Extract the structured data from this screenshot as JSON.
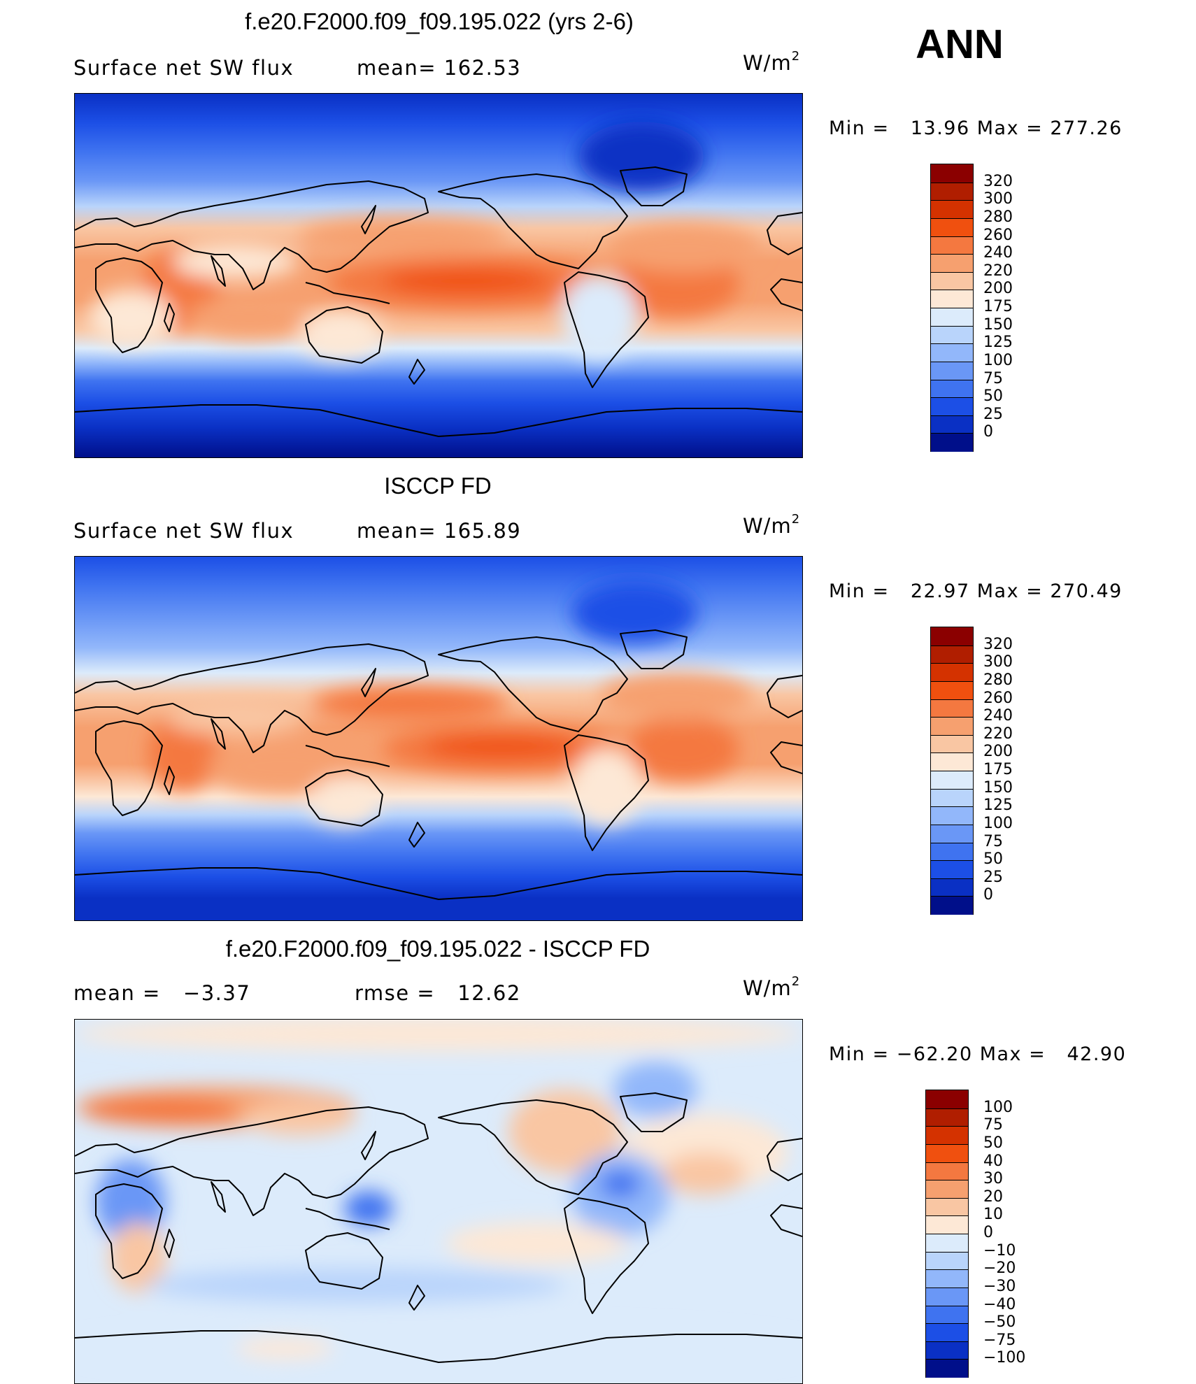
{
  "season": "ANN",
  "unit_main": "W/m",
  "unit_sup": "2",
  "panels": [
    {
      "title": "f.e20.F2000.f09_f09.195.022 (yrs 2-6)",
      "left_label": "Surface net SW flux",
      "center_label": "mean= 162.53",
      "minmax": "Min =   13.96 Max = 277.26"
    },
    {
      "title": "ISCCP FD",
      "left_label": "Surface net SW flux",
      "center_label": "mean= 165.89",
      "minmax": "Min =   22.97 Max = 270.49"
    },
    {
      "title": "f.e20.F2000.f09_f09.195.022 - ISCCP FD",
      "left_label": "mean =   −3.37",
      "center_label": "rmse =   12.62",
      "minmax": "Min = −62.20 Max =   42.90"
    }
  ],
  "colorbars": {
    "absolute": {
      "levels": [
        "320",
        "300",
        "280",
        "260",
        "240",
        "220",
        "200",
        "175",
        "150",
        "125",
        "100",
        "75",
        "50",
        "25",
        "0"
      ],
      "colors": [
        "#8b0000",
        "#b01e00",
        "#d43200",
        "#f0500f",
        "#f47840",
        "#f6a06f",
        "#f9c6a3",
        "#fde8d6",
        "#dcebfb",
        "#b9d4fb",
        "#92b7fa",
        "#6a97f6",
        "#3f73f0",
        "#1c4fe6",
        "#0a30c4",
        "#000f8a"
      ]
    },
    "difference": {
      "levels": [
        "100",
        "75",
        "50",
        "40",
        "30",
        "20",
        "10",
        "0",
        "−10",
        "−20",
        "−30",
        "−40",
        "−50",
        "−75",
        "−100"
      ],
      "colors": [
        "#8b0000",
        "#b01e00",
        "#d43200",
        "#f0500f",
        "#f47840",
        "#f6a06f",
        "#f9c6a3",
        "#fde8d6",
        "#dcebfb",
        "#b9d4fb",
        "#92b7fa",
        "#6a97f6",
        "#3f73f0",
        "#1c4fe6",
        "#0a30c4",
        "#000f8a"
      ]
    }
  }
}
